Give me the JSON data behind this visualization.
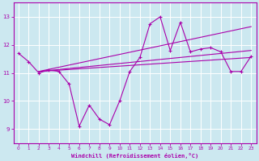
{
  "bg_color": "#cce8f0",
  "grid_color": "#b8d8e8",
  "line_color": "#aa00aa",
  "xlim": [
    -0.5,
    23.5
  ],
  "ylim": [
    8.5,
    13.5
  ],
  "yticks": [
    9,
    10,
    11,
    12,
    13
  ],
  "xticks": [
    0,
    1,
    2,
    3,
    4,
    5,
    6,
    7,
    8,
    9,
    10,
    11,
    12,
    13,
    14,
    15,
    16,
    17,
    18,
    19,
    20,
    21,
    22,
    23
  ],
  "xlabel": "Windchill (Refroidissement éolien,°C)",
  "series_x": [
    0,
    1,
    2,
    3,
    4,
    5,
    6,
    7,
    8,
    9,
    10,
    11,
    12,
    13,
    14,
    15,
    16,
    17,
    18,
    19,
    20,
    21,
    22,
    23
  ],
  "series_y": [
    11.7,
    11.4,
    11.0,
    11.1,
    11.05,
    10.6,
    9.1,
    9.85,
    9.35,
    9.15,
    10.0,
    11.05,
    11.55,
    12.75,
    13.0,
    11.8,
    12.8,
    11.75,
    11.85,
    11.9,
    11.75,
    11.05,
    11.05,
    11.6
  ],
  "trend1_x": [
    2,
    23
  ],
  "trend1_y": [
    11.05,
    12.65
  ],
  "trend2_x": [
    2,
    23
  ],
  "trend2_y": [
    11.05,
    11.8
  ],
  "trend3_x": [
    2,
    23
  ],
  "trend3_y": [
    11.05,
    11.55
  ]
}
